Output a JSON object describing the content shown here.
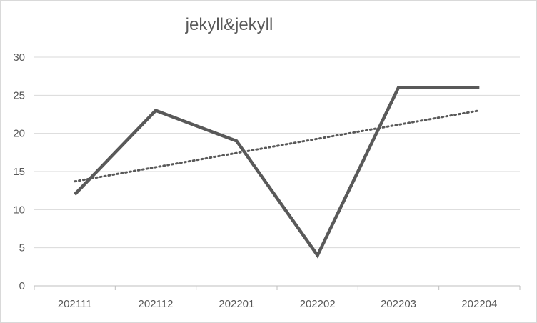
{
  "chart_data": {
    "type": "line",
    "title": "jekyll&jekyll",
    "xlabel": "",
    "ylabel": "",
    "categories": [
      "202111",
      "202112",
      "202201",
      "202202",
      "202203",
      "202204"
    ],
    "series": [
      {
        "values": [
          12,
          23,
          19,
          4,
          26,
          26
        ],
        "color": "#595959"
      }
    ],
    "trendline": {
      "kind": "linear",
      "style": "dotted",
      "color": "#595959",
      "values": [
        13.71,
        15.57,
        17.43,
        19.29,
        21.14,
        23.0
      ]
    },
    "ylim": [
      0,
      30
    ],
    "yticks": [
      "0",
      "5",
      "10",
      "15",
      "20",
      "25",
      "30"
    ],
    "grid": true,
    "legend": "none"
  }
}
